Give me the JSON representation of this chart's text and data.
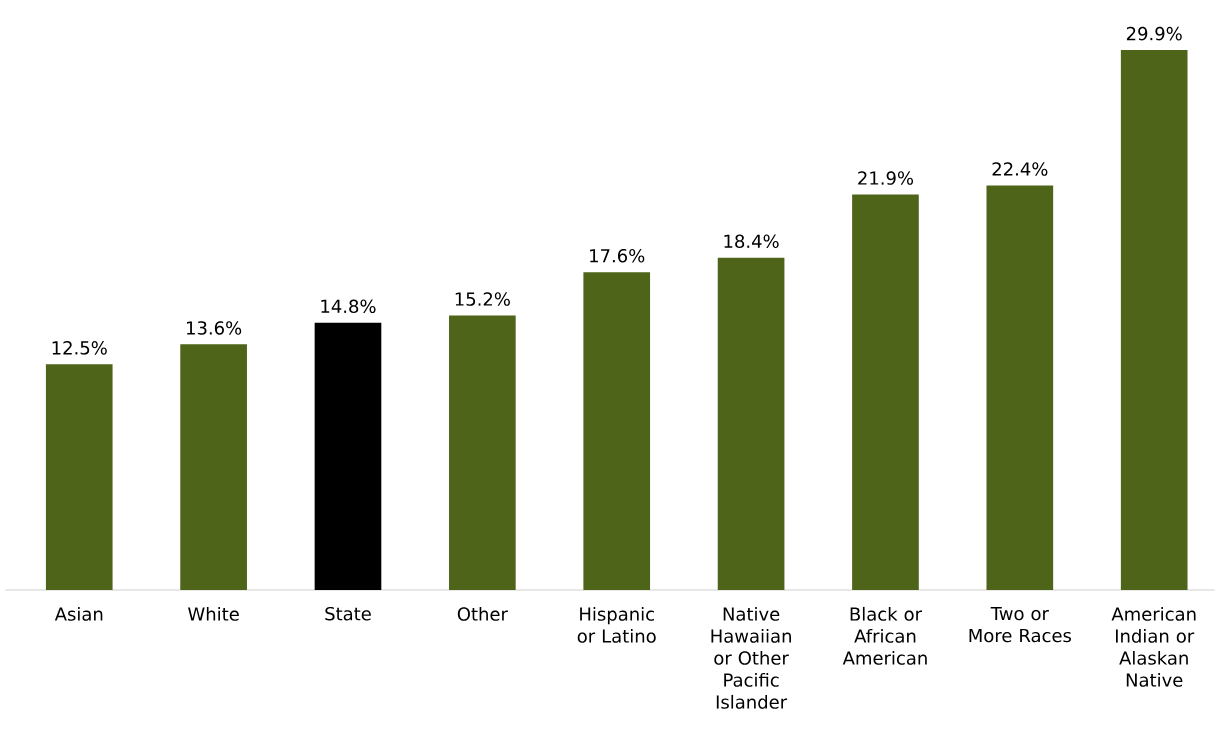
{
  "chart_data": {
    "type": "bar",
    "categories": [
      "Asian",
      "White",
      "State",
      "Other",
      "Hispanic or Latino",
      "Native Hawaiian or Other Pacific Islander",
      "Black or African American",
      "Two or More Races",
      "American Indian or Alaskan Native"
    ],
    "values": [
      12.5,
      13.6,
      14.8,
      15.2,
      17.6,
      18.4,
      21.9,
      22.4,
      29.9
    ],
    "value_labels": [
      "12.5%",
      "13.6%",
      "14.8%",
      "15.2%",
      "17.6%",
      "18.4%",
      "21.9%",
      "22.4%",
      "29.9%"
    ],
    "colors": [
      "#4e6419",
      "#4e6419",
      "#000000",
      "#4e6419",
      "#4e6419",
      "#4e6419",
      "#4e6419",
      "#4e6419",
      "#4e6419"
    ]
  }
}
